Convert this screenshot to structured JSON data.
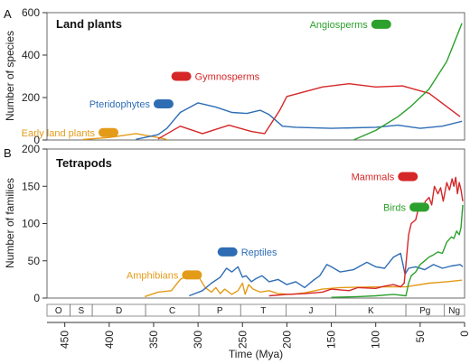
{
  "colors": {
    "red": "#d62728",
    "blue": "#2e6db4",
    "green": "#2ca02c",
    "orange": "#e39b18"
  },
  "xlabel": "Time (Mya)",
  "x_ticks": [
    450,
    400,
    350,
    300,
    250,
    200,
    150,
    100,
    50,
    0
  ],
  "periods": [
    {
      "label": "O",
      "start": 485,
      "end": 444
    },
    {
      "label": "S",
      "start": 444,
      "end": 419
    },
    {
      "label": "D",
      "start": 419,
      "end": 359
    },
    {
      "label": "C",
      "start": 359,
      "end": 299
    },
    {
      "label": "P",
      "start": 299,
      "end": 252
    },
    {
      "label": "T",
      "start": 252,
      "end": 201
    },
    {
      "label": "J",
      "start": 201,
      "end": 145
    },
    {
      "label": "K",
      "start": 145,
      "end": 66
    },
    {
      "label": "Pg",
      "start": 66,
      "end": 23
    },
    {
      "label": "Ng",
      "start": 23,
      "end": 0
    }
  ],
  "chart_data": [
    {
      "type": "line",
      "panel": "A",
      "title": "Land plants",
      "xlabel": "Time (Mya)",
      "ylabel": "Number of species",
      "xlim": [
        470,
        0
      ],
      "ylim": [
        0,
        600
      ],
      "y_ticks": [
        0,
        200,
        400,
        600
      ],
      "series": [
        {
          "name": "Early land plants",
          "color": "orange",
          "x": [
            430,
            400,
            370,
            345,
            335
          ],
          "y": [
            2,
            12,
            30,
            12,
            2
          ]
        },
        {
          "name": "Pteridophytes",
          "color": "blue",
          "x": [
            370,
            345,
            335,
            320,
            300,
            280,
            262,
            245,
            230,
            220,
            205,
            190,
            150,
            100,
            75,
            50,
            25,
            3
          ],
          "y": [
            3,
            25,
            55,
            130,
            175,
            155,
            130,
            125,
            140,
            120,
            65,
            60,
            55,
            60,
            70,
            55,
            65,
            88
          ]
        },
        {
          "name": "Gymnosperms",
          "color": "red",
          "x": [
            345,
            320,
            295,
            265,
            240,
            225,
            208,
            200,
            160,
            130,
            100,
            70,
            40,
            5
          ],
          "y": [
            5,
            65,
            30,
            70,
            40,
            30,
            140,
            205,
            250,
            265,
            250,
            255,
            220,
            110
          ]
        },
        {
          "name": "Angiosperms",
          "color": "green",
          "x": [
            125,
            100,
            75,
            60,
            40,
            20,
            3
          ],
          "y": [
            0,
            45,
            110,
            160,
            240,
            370,
            550
          ]
        }
      ],
      "labels": [
        {
          "text": "Angiosperms",
          "series": "Angiosperms"
        },
        {
          "text": "Gymnosperms",
          "series": "Gymnosperms"
        },
        {
          "text": "Pteridophytes",
          "series": "Pteridophytes"
        },
        {
          "text": "Early land plants",
          "series": "Early land plants"
        }
      ]
    },
    {
      "type": "line",
      "panel": "B",
      "title": "Tetrapods",
      "xlabel": "Time (Mya)",
      "ylabel": "Number of families",
      "xlim": [
        470,
        0
      ],
      "ylim": [
        0,
        200
      ],
      "y_ticks": [
        0,
        50,
        100,
        150,
        200
      ],
      "series": [
        {
          "name": "Amphibians",
          "color": "orange",
          "x": [
            360,
            345,
            330,
            320,
            312,
            300,
            292,
            285,
            280,
            275,
            270,
            262,
            255,
            250,
            247,
            243,
            238,
            230,
            220,
            210,
            195,
            180,
            160,
            140,
            100,
            66,
            40,
            20,
            3
          ],
          "y": [
            2,
            8,
            10,
            25,
            30,
            30,
            14,
            8,
            14,
            6,
            12,
            5,
            10,
            20,
            5,
            18,
            12,
            8,
            10,
            6,
            5,
            7,
            12,
            14,
            15,
            15,
            20,
            22,
            24
          ]
        },
        {
          "name": "Reptiles",
          "color": "blue",
          "x": [
            310,
            295,
            285,
            275,
            268,
            262,
            255,
            250,
            246,
            240,
            235,
            228,
            220,
            210,
            200,
            190,
            180,
            170,
            163,
            155,
            150,
            140,
            125,
            110,
            100,
            90,
            80,
            72,
            67,
            63,
            55,
            45,
            35,
            25,
            15,
            5,
            2
          ],
          "y": [
            3,
            10,
            20,
            28,
            40,
            35,
            42,
            28,
            30,
            22,
            26,
            30,
            22,
            25,
            18,
            22,
            14,
            24,
            30,
            45,
            42,
            35,
            38,
            48,
            42,
            40,
            55,
            60,
            32,
            40,
            42,
            38,
            45,
            40,
            43,
            45,
            42
          ]
        },
        {
          "name": "Mammals",
          "color": "red",
          "x": [
            220,
            200,
            180,
            160,
            150,
            130,
            120,
            100,
            90,
            80,
            72,
            68,
            66,
            63,
            60,
            55,
            52,
            48,
            44,
            40,
            37,
            34,
            30,
            27,
            24,
            20,
            17,
            14,
            12,
            10,
            8,
            6,
            4,
            2
          ],
          "y": [
            3,
            5,
            6,
            8,
            12,
            10,
            14,
            13,
            16,
            18,
            15,
            20,
            45,
            85,
            100,
            105,
            120,
            118,
            130,
            135,
            125,
            150,
            140,
            148,
            130,
            155,
            145,
            160,
            150,
            162,
            140,
            155,
            145,
            130
          ]
        },
        {
          "name": "Birds",
          "color": "green",
          "x": [
            150,
            120,
            100,
            80,
            66,
            63,
            60,
            55,
            50,
            45,
            40,
            35,
            30,
            25,
            20,
            15,
            12,
            9,
            6,
            4,
            2
          ],
          "y": [
            1,
            2,
            3,
            5,
            3,
            20,
            30,
            35,
            45,
            50,
            55,
            58,
            62,
            60,
            75,
            82,
            80,
            90,
            85,
            95,
            125
          ]
        }
      ],
      "labels": [
        {
          "text": "Mammals",
          "series": "Mammals"
        },
        {
          "text": "Birds",
          "series": "Birds"
        },
        {
          "text": "Reptiles",
          "series": "Reptiles"
        },
        {
          "text": "Amphibians",
          "series": "Amphibians"
        }
      ]
    }
  ]
}
